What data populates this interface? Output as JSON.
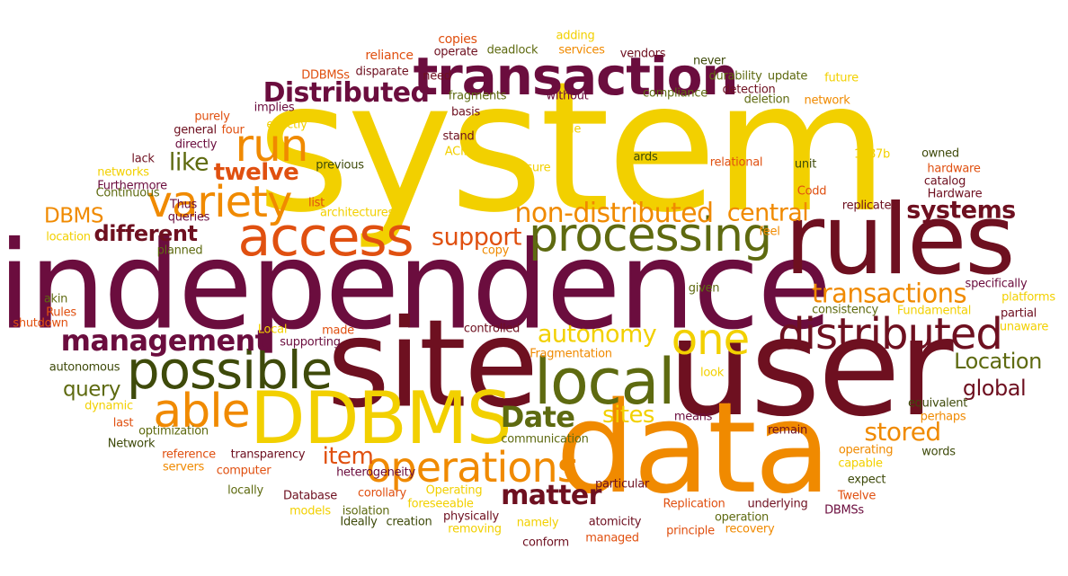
{
  "palette": {
    "yellow": "#f2d000",
    "orange": "#f08a00",
    "red_orange": "#e05010",
    "maroon": "#6e1020",
    "plum": "#6b0d3e",
    "olive": "#5e6a10",
    "dark_olive": "#3e4a0a",
    "gold": "#d9a400"
  },
  "words": [
    {
      "text": "system",
      "color": "#f2d000"
    },
    {
      "text": "independence",
      "color": "#6b0d3e"
    },
    {
      "text": "user",
      "color": "#6e1020"
    },
    {
      "text": "data",
      "color": "#f08a00"
    },
    {
      "text": "site",
      "color": "#6e1020"
    },
    {
      "text": "rules",
      "color": "#6e1020"
    },
    {
      "text": "transaction",
      "color": "#6b0d3e"
    },
    {
      "text": "access",
      "color": "#e05010"
    },
    {
      "text": "DDBMS",
      "color": "#f2d000"
    },
    {
      "text": "local",
      "color": "#5e6a10"
    },
    {
      "text": "possible",
      "color": "#3e4a0a"
    },
    {
      "text": "processing",
      "color": "#5e6a10"
    },
    {
      "text": "able",
      "color": "#f08a00"
    },
    {
      "text": "distributed",
      "color": "#6e1020"
    },
    {
      "text": "operations",
      "color": "#f08a00"
    },
    {
      "text": "variety",
      "color": "#f08a00"
    },
    {
      "text": "run",
      "color": "#f08a00"
    },
    {
      "text": "one",
      "color": "#f2d000"
    },
    {
      "text": "Distributed",
      "color": "#6b0d3e"
    },
    {
      "text": "management",
      "color": "#6b0d3e"
    },
    {
      "text": "non-distributed",
      "color": "#f08a00"
    },
    {
      "text": "transactions",
      "color": "#f08a00"
    },
    {
      "text": "systems",
      "color": "#6e1020"
    },
    {
      "text": "central",
      "color": "#f08a00"
    },
    {
      "text": "Date",
      "color": "#5e6a10"
    },
    {
      "text": "matter",
      "color": "#6e1020"
    },
    {
      "text": "autonomy",
      "color": "#f2d000"
    },
    {
      "text": "stored",
      "color": "#f08a00"
    },
    {
      "text": "support",
      "color": "#e05010"
    },
    {
      "text": "different",
      "color": "#6e1020"
    },
    {
      "text": "twelve",
      "color": "#e05010"
    },
    {
      "text": "like",
      "color": "#5e6a10"
    },
    {
      "text": "Location",
      "color": "#5e6a10"
    },
    {
      "text": "global",
      "color": "#6e1020"
    },
    {
      "text": "query",
      "color": "#5e6a10"
    },
    {
      "text": "item",
      "color": "#e05010"
    },
    {
      "text": "sites",
      "color": "#f2d000"
    },
    {
      "text": "DBMS",
      "color": "#f08a00"
    },
    {
      "text": "reliance",
      "color": "#e05010"
    },
    {
      "text": "copies",
      "color": "#e05010"
    },
    {
      "text": "deadlock",
      "color": "#5e6a10"
    },
    {
      "text": "adding",
      "color": "#f2d000"
    },
    {
      "text": "services",
      "color": "#f08a00"
    },
    {
      "text": "vendors",
      "color": "#6e1020"
    },
    {
      "text": "never",
      "color": "#3e4a0a"
    },
    {
      "text": "DDBMSs",
      "color": "#e05010"
    },
    {
      "text": "disparate",
      "color": "#6e1020"
    },
    {
      "text": "operate",
      "color": "#6e1020"
    },
    {
      "text": "need",
      "color": "#6e1020"
    },
    {
      "text": "durability",
      "color": "#5e6a10"
    },
    {
      "text": "update",
      "color": "#5e6a10"
    },
    {
      "text": "future",
      "color": "#f2d000"
    },
    {
      "text": "fragments",
      "color": "#5e6a10"
    },
    {
      "text": "without",
      "color": "#6b0d3e"
    },
    {
      "text": "compliance",
      "color": "#5e6a10"
    },
    {
      "text": "detection",
      "color": "#6e1020"
    },
    {
      "text": "deletion",
      "color": "#5e6a10"
    },
    {
      "text": "network",
      "color": "#f08a00"
    },
    {
      "text": "purely",
      "color": "#e05010"
    },
    {
      "text": "implies",
      "color": "#6b0d3e"
    },
    {
      "text": "exactly",
      "color": "#f2d000"
    },
    {
      "text": "basis",
      "color": "#6e1020"
    },
    {
      "text": "general",
      "color": "#6e1020"
    },
    {
      "text": "four",
      "color": "#e05010"
    },
    {
      "text": "directly",
      "color": "#6b0d3e"
    },
    {
      "text": "stand",
      "color": "#6e1020"
    },
    {
      "text": "ACID",
      "color": "#f2d000"
    },
    {
      "text": "rule",
      "color": "#f2d000"
    },
    {
      "text": "lack",
      "color": "#6e1020"
    },
    {
      "text": "networks",
      "color": "#f2d000"
    },
    {
      "text": "Furthermore",
      "color": "#6b0d3e"
    },
    {
      "text": "previous",
      "color": "#3e4a0a"
    },
    {
      "text": "ards",
      "color": "#3e4a0a"
    },
    {
      "text": "ensure",
      "color": "#f2d000"
    },
    {
      "text": "relational",
      "color": "#e05010"
    },
    {
      "text": "unit",
      "color": "#3e4a0a"
    },
    {
      "text": "1987b",
      "color": "#f2d000"
    },
    {
      "text": "owned",
      "color": "#3e4a0a"
    },
    {
      "text": "hardware",
      "color": "#e05010"
    },
    {
      "text": "catalog",
      "color": "#6e1020"
    },
    {
      "text": "Continuous",
      "color": "#5e6a10"
    },
    {
      "text": "Thus",
      "color": "#6b0d3e"
    },
    {
      "text": "queries",
      "color": "#6b0d3e"
    },
    {
      "text": "list",
      "color": "#e05010"
    },
    {
      "text": "architectures",
      "color": "#f2d000"
    },
    {
      "text": "Codd",
      "color": "#e05010"
    },
    {
      "text": "replicated",
      "color": "#6e1020"
    },
    {
      "text": "Hardware",
      "color": "#6e1020"
    },
    {
      "text": "location",
      "color": "#f2d000"
    },
    {
      "text": "planned",
      "color": "#5e6a10"
    },
    {
      "text": "copy",
      "color": "#f08a00"
    },
    {
      "text": "feel",
      "color": "#f08a00"
    },
    {
      "text": "specifically",
      "color": "#6b0d3e"
    },
    {
      "text": "platforms",
      "color": "#f2d000"
    },
    {
      "text": "akin",
      "color": "#5e6a10"
    },
    {
      "text": "Rules",
      "color": "#e05010"
    },
    {
      "text": "shutdown",
      "color": "#e05010"
    },
    {
      "text": "given",
      "color": "#5e6a10"
    },
    {
      "text": "consistency",
      "color": "#5e6a10"
    },
    {
      "text": "Fundamental",
      "color": "#f2d000"
    },
    {
      "text": "partial",
      "color": "#6e1020"
    },
    {
      "text": "unaware",
      "color": "#f2d000"
    },
    {
      "text": "Local",
      "color": "#f2d000"
    },
    {
      "text": "made",
      "color": "#e05010"
    },
    {
      "text": "supporting",
      "color": "#6b0d3e"
    },
    {
      "text": "controlled",
      "color": "#6e1020"
    },
    {
      "text": "Fragmentation",
      "color": "#f08a00"
    },
    {
      "text": "autonomous",
      "color": "#3e4a0a"
    },
    {
      "text": "look",
      "color": "#f2d000"
    },
    {
      "text": "dynamic",
      "color": "#f2d000"
    },
    {
      "text": "equivalent",
      "color": "#3e4a0a"
    },
    {
      "text": "perhaps",
      "color": "#f08a00"
    },
    {
      "text": "last",
      "color": "#e05010"
    },
    {
      "text": "optimization",
      "color": "#5e6a10"
    },
    {
      "text": "means",
      "color": "#6b0d3e"
    },
    {
      "text": "remain",
      "color": "#6e1020"
    },
    {
      "text": "Network",
      "color": "#3e4a0a"
    },
    {
      "text": "communication",
      "color": "#5e6a10"
    },
    {
      "text": "reference",
      "color": "#e05010"
    },
    {
      "text": "servers",
      "color": "#f08a00"
    },
    {
      "text": "transparency",
      "color": "#6e1020"
    },
    {
      "text": "operating",
      "color": "#f08a00"
    },
    {
      "text": "capable",
      "color": "#f2d000"
    },
    {
      "text": "words",
      "color": "#3e4a0a"
    },
    {
      "text": "computer",
      "color": "#e05010"
    },
    {
      "text": "heterogeneity",
      "color": "#6b0d3e"
    },
    {
      "text": "expect",
      "color": "#3e4a0a"
    },
    {
      "text": "locally",
      "color": "#5e6a10"
    },
    {
      "text": "Database",
      "color": "#6e1020"
    },
    {
      "text": "corollary",
      "color": "#e05010"
    },
    {
      "text": "Operating",
      "color": "#f2d000"
    },
    {
      "text": "particular",
      "color": "#6e1020"
    },
    {
      "text": "Replication",
      "color": "#e05010"
    },
    {
      "text": "Twelve",
      "color": "#e05010"
    },
    {
      "text": "underlying",
      "color": "#6e1020"
    },
    {
      "text": "DBMSs",
      "color": "#6b0d3e"
    },
    {
      "text": "models",
      "color": "#f2d000"
    },
    {
      "text": "isolation",
      "color": "#5e6a10"
    },
    {
      "text": "foreseeable",
      "color": "#f2d000"
    },
    {
      "text": "physically",
      "color": "#6e1020"
    },
    {
      "text": "operation",
      "color": "#5e6a10"
    },
    {
      "text": "Ideally",
      "color": "#3e4a0a"
    },
    {
      "text": "creation",
      "color": "#3e4a0a"
    },
    {
      "text": "namely",
      "color": "#f2d000"
    },
    {
      "text": "atomicity",
      "color": "#6e1020"
    },
    {
      "text": "principle",
      "color": "#e05010"
    },
    {
      "text": "recovery",
      "color": "#f08a00"
    },
    {
      "text": "removing",
      "color": "#f2d000"
    },
    {
      "text": "managed",
      "color": "#e05010"
    },
    {
      "text": "conform",
      "color": "#6e1020"
    }
  ]
}
